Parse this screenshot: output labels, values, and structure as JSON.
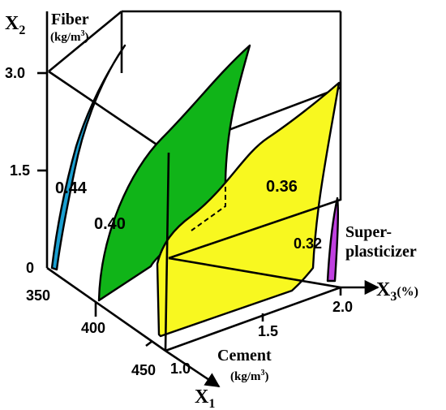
{
  "axes": {
    "x1": {
      "symbol": "X",
      "subscript": "1",
      "name": "Cement",
      "unit_pre": "(kg/m",
      "unit_sup": "3",
      "unit_post": ")",
      "ticks": [
        "350",
        "400",
        "450"
      ]
    },
    "x2": {
      "symbol": "X",
      "subscript": "2",
      "name": "Fiber",
      "unit_pre": "(kg/m",
      "unit_sup": "3",
      "unit_post": ")",
      "ticks": [
        "0",
        "1.5",
        "3.0"
      ]
    },
    "x3": {
      "symbol": "X",
      "subscript": "3",
      "unit": "(%)",
      "name_line1": "Super-",
      "name_line2": "plasticizer",
      "ticks": [
        "1.0",
        "1.5",
        "2.0"
      ]
    }
  },
  "contours": [
    {
      "label": "0.44",
      "color": "#1a9fd0"
    },
    {
      "label": "0.40",
      "color": "#10b418"
    },
    {
      "label": "0.36",
      "color": "#f8f820"
    },
    {
      "label": "0.32",
      "color": "#c040e0"
    }
  ]
}
